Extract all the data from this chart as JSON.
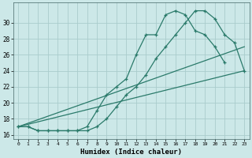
{
  "xlabel": "Humidex (Indice chaleur)",
  "bg_color": "#cce8e8",
  "line_color": "#2a7a6a",
  "grid_color": "#aacccc",
  "xlim": [
    -0.5,
    23.5
  ],
  "ylim": [
    15.5,
    32.5
  ],
  "yticks": [
    16,
    18,
    20,
    22,
    24,
    26,
    28,
    30
  ],
  "xticks": [
    0,
    1,
    2,
    3,
    4,
    5,
    6,
    7,
    8,
    9,
    10,
    11,
    12,
    13,
    14,
    15,
    16,
    17,
    18,
    19,
    20,
    21,
    22,
    23
  ],
  "line1": {
    "x": [
      0,
      1,
      2,
      3,
      4,
      5,
      6,
      7,
      8,
      9,
      10,
      11,
      12,
      13,
      14,
      15,
      16,
      17,
      18,
      19,
      20,
      21
    ],
    "y": [
      17,
      17,
      16.5,
      16.5,
      16.5,
      16.5,
      16.5,
      17,
      19,
      21,
      22,
      23,
      26,
      28.5,
      28.5,
      31,
      31.5,
      31,
      29,
      28.5,
      27,
      25
    ]
  },
  "line2": {
    "x": [
      0,
      1,
      2,
      3,
      4,
      5,
      6,
      7,
      8,
      9,
      10,
      11,
      12,
      13,
      14,
      15,
      16,
      17,
      18,
      19,
      20,
      21,
      22,
      23
    ],
    "y": [
      17,
      17,
      16.5,
      16.5,
      16.5,
      16.5,
      16.5,
      16.5,
      17,
      18,
      19.5,
      21,
      22,
      23.5,
      25.5,
      27,
      28.5,
      30,
      31.5,
      31.5,
      30.5,
      28.5,
      27.5,
      24
    ]
  },
  "line3": {
    "x": [
      0,
      23
    ],
    "y": [
      17,
      27
    ]
  },
  "line4": {
    "x": [
      0,
      23
    ],
    "y": [
      17,
      24
    ]
  }
}
